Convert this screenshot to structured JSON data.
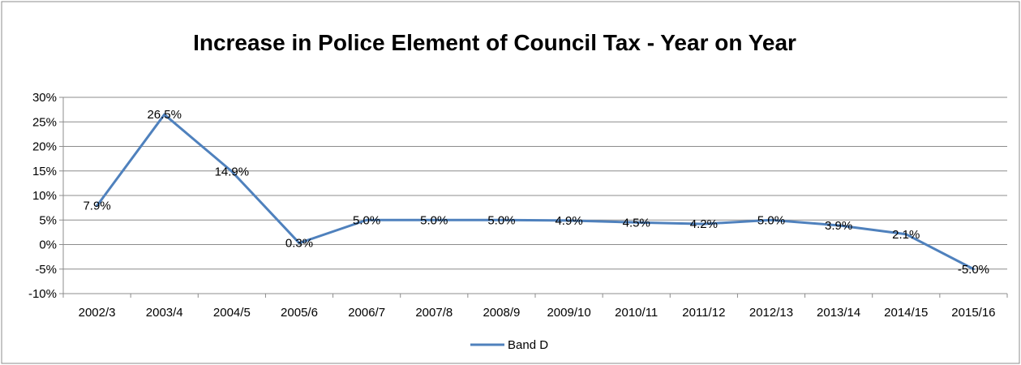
{
  "chart_data": {
    "type": "line",
    "title": "Increase in Police Element of Council Tax - Year on Year",
    "categories": [
      "2002/3",
      "2003/4",
      "2004/5",
      "2005/6",
      "2006/7",
      "2007/8",
      "2008/9",
      "2009/10",
      "2010/11",
      "2011/12",
      "2012/13",
      "2013/14",
      "2014/15",
      "2015/16"
    ],
    "series": [
      {
        "name": "Band D",
        "values": [
          7.9,
          26.5,
          14.9,
          0.3,
          5.0,
          5.0,
          5.0,
          4.9,
          4.5,
          4.2,
          5.0,
          3.9,
          2.1,
          -5.0
        ],
        "data_labels": [
          "7.9%",
          "26.5%",
          "14.9%",
          "0.3%",
          "5.0%",
          "5.0%",
          "5.0%",
          "4.9%",
          "4.5%",
          "4.2%",
          "5.0%",
          "3.9%",
          "2.1%",
          "-5.0%"
        ],
        "color": "#4f81bd"
      }
    ],
    "ylim": [
      -10,
      30
    ],
    "y_ticks": [
      30,
      25,
      20,
      15,
      10,
      5,
      0,
      -5,
      -10
    ],
    "y_tick_labels": [
      "30%",
      "25%",
      "20%",
      "15%",
      "10%",
      "5%",
      "0%",
      "-5%",
      "-10%"
    ],
    "grid": true,
    "legend": "bottom"
  }
}
